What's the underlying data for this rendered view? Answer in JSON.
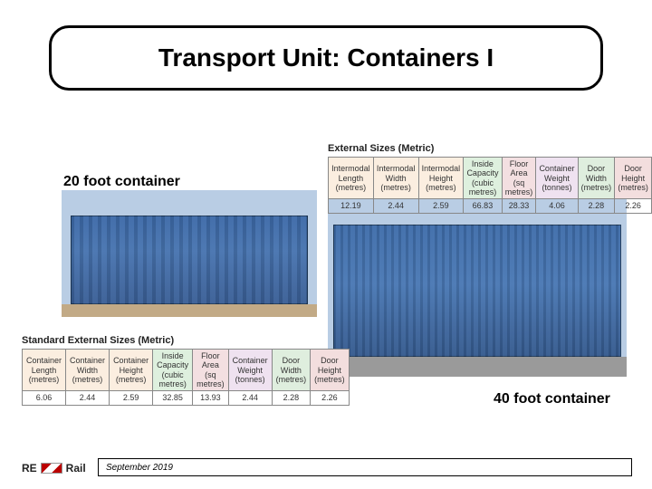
{
  "title": "Transport Unit: Containers I",
  "label20": "20 foot container",
  "label40": "40 foot container",
  "table40": {
    "title": "External Sizes (Metric)",
    "headers": [
      "Intermodal Length (metres)",
      "Intermodal Width (metres)",
      "Intermodal Height (metres)",
      "Inside Capacity (cubic metres)",
      "Floor Area (sq metres)",
      "Container Weight (tonnes)",
      "Door Width (metres)",
      "Door Height (metres)"
    ],
    "header_colors": [
      "col-base",
      "col-base",
      "col-base",
      "col-in",
      "col-floor",
      "col-wt",
      "col-dw",
      "col-dh"
    ],
    "row": [
      "12.19",
      "2.44",
      "2.59",
      "66.83",
      "28.33",
      "4.06",
      "2.28",
      "2.26"
    ]
  },
  "table20": {
    "title": "Standard External Sizes (Metric)",
    "headers": [
      "Container Length (metres)",
      "Container Width (metres)",
      "Container Height (metres)",
      "Inside Capacity (cubic metres)",
      "Floor Area (sq metres)",
      "Container Weight (tonnes)",
      "Door Width (metres)",
      "Door Height (metres)"
    ],
    "header_colors": [
      "col-base",
      "col-base",
      "col-base",
      "col-in",
      "col-floor",
      "col-wt",
      "col-dw",
      "col-dh"
    ],
    "row": [
      "6.06",
      "2.44",
      "2.59",
      "32.85",
      "13.93",
      "2.44",
      "2.28",
      "2.26"
    ]
  },
  "footer": {
    "brand_left": "RE",
    "brand_right": "Rail",
    "date": "September 2019"
  }
}
